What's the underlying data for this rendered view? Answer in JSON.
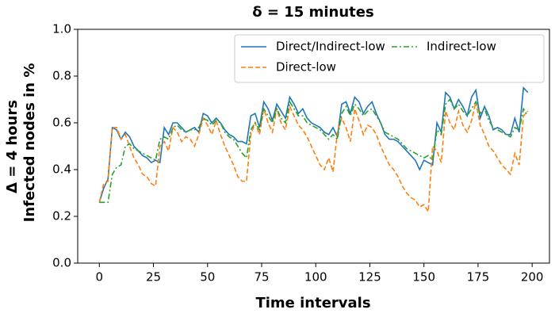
{
  "chart_data": {
    "type": "line",
    "title": "δ = 15 minutes",
    "xlabel": "Time intervals",
    "ylabel": [
      "Δ = 4 hours",
      "Infected nodes in %"
    ],
    "x": [
      0,
      2,
      4,
      6,
      8,
      10,
      12,
      14,
      16,
      18,
      20,
      22,
      24,
      26,
      28,
      30,
      32,
      34,
      36,
      38,
      40,
      42,
      44,
      46,
      48,
      50,
      52,
      54,
      56,
      58,
      60,
      62,
      64,
      66,
      68,
      70,
      72,
      74,
      76,
      78,
      80,
      82,
      84,
      86,
      88,
      90,
      92,
      94,
      96,
      98,
      100,
      102,
      104,
      106,
      108,
      110,
      112,
      114,
      116,
      118,
      120,
      122,
      124,
      126,
      128,
      130,
      132,
      134,
      136,
      138,
      140,
      142,
      144,
      146,
      148,
      150,
      152,
      154,
      156,
      158,
      160,
      162,
      164,
      166,
      168,
      170,
      172,
      174,
      176,
      178,
      180,
      182,
      184,
      186,
      188,
      190,
      192,
      194,
      196,
      198
    ],
    "series": [
      {
        "name": "Direct/Indirect-low",
        "color": "#1f77b4",
        "dash": "solid",
        "values": [
          0.26,
          0.32,
          0.36,
          0.58,
          0.57,
          0.53,
          0.56,
          0.54,
          0.5,
          0.48,
          0.46,
          0.45,
          0.43,
          0.44,
          0.43,
          0.58,
          0.55,
          0.6,
          0.6,
          0.58,
          0.56,
          0.57,
          0.58,
          0.56,
          0.64,
          0.63,
          0.6,
          0.62,
          0.6,
          0.57,
          0.55,
          0.54,
          0.52,
          0.52,
          0.51,
          0.63,
          0.64,
          0.58,
          0.69,
          0.66,
          0.61,
          0.68,
          0.65,
          0.62,
          0.71,
          0.68,
          0.64,
          0.66,
          0.62,
          0.6,
          0.59,
          0.58,
          0.56,
          0.55,
          0.58,
          0.54,
          0.68,
          0.69,
          0.64,
          0.71,
          0.69,
          0.64,
          0.67,
          0.69,
          0.64,
          0.6,
          0.55,
          0.53,
          0.53,
          0.52,
          0.5,
          0.48,
          0.46,
          0.44,
          0.4,
          0.44,
          0.43,
          0.42,
          0.6,
          0.56,
          0.73,
          0.71,
          0.66,
          0.7,
          0.67,
          0.63,
          0.71,
          0.74,
          0.62,
          0.67,
          0.63,
          0.57,
          0.58,
          0.57,
          0.55,
          0.55,
          0.62,
          0.56,
          0.75,
          0.73
        ]
      },
      {
        "name": "Direct-low",
        "color": "#ff7f0e",
        "dash": "dashed",
        "values": [
          0.26,
          0.34,
          0.35,
          0.58,
          0.58,
          0.53,
          0.55,
          0.5,
          0.45,
          0.42,
          0.38,
          0.37,
          0.34,
          0.33,
          0.5,
          0.52,
          0.48,
          0.58,
          0.56,
          0.52,
          0.54,
          0.53,
          0.5,
          0.55,
          0.62,
          0.59,
          0.55,
          0.61,
          0.55,
          0.5,
          0.46,
          0.42,
          0.37,
          0.35,
          0.35,
          0.55,
          0.6,
          0.55,
          0.66,
          0.6,
          0.56,
          0.66,
          0.6,
          0.57,
          0.67,
          0.63,
          0.59,
          0.57,
          0.54,
          0.5,
          0.46,
          0.42,
          0.4,
          0.45,
          0.39,
          0.56,
          0.62,
          0.58,
          0.52,
          0.66,
          0.61,
          0.55,
          0.59,
          0.58,
          0.55,
          0.5,
          0.46,
          0.42,
          0.4,
          0.37,
          0.33,
          0.3,
          0.28,
          0.27,
          0.24,
          0.25,
          0.22,
          0.5,
          0.48,
          0.43,
          0.65,
          0.6,
          0.57,
          0.65,
          0.59,
          0.56,
          0.61,
          0.69,
          0.59,
          0.55,
          0.5,
          0.48,
          0.45,
          0.42,
          0.4,
          0.38,
          0.47,
          0.42,
          0.63,
          0.65
        ]
      },
      {
        "name": "Indirect-low",
        "color": "#2ca02c",
        "dash": "dashdot",
        "values": [
          0.26,
          0.26,
          0.26,
          0.38,
          0.41,
          0.42,
          0.5,
          0.51,
          0.49,
          0.48,
          0.47,
          0.46,
          0.45,
          0.44,
          0.53,
          0.54,
          0.53,
          0.58,
          0.59,
          0.57,
          0.56,
          0.57,
          0.57,
          0.58,
          0.62,
          0.61,
          0.59,
          0.61,
          0.6,
          0.56,
          0.54,
          0.53,
          0.5,
          0.47,
          0.45,
          0.57,
          0.6,
          0.57,
          0.66,
          0.63,
          0.6,
          0.66,
          0.62,
          0.6,
          0.69,
          0.66,
          0.63,
          0.63,
          0.6,
          0.59,
          0.58,
          0.57,
          0.55,
          0.53,
          0.55,
          0.53,
          0.64,
          0.67,
          0.63,
          0.68,
          0.66,
          0.63,
          0.65,
          0.66,
          0.63,
          0.6,
          0.56,
          0.55,
          0.54,
          0.53,
          0.51,
          0.49,
          0.48,
          0.47,
          0.46,
          0.45,
          0.46,
          0.44,
          0.57,
          0.55,
          0.68,
          0.7,
          0.66,
          0.68,
          0.65,
          0.63,
          0.66,
          0.69,
          0.64,
          0.66,
          0.61,
          0.58,
          0.57,
          0.56,
          0.55,
          0.54,
          0.58,
          0.57,
          0.66,
          0.63
        ]
      }
    ],
    "xlim": [
      -10,
      208
    ],
    "ylim": [
      0,
      1
    ],
    "xticks": [
      0,
      25,
      50,
      75,
      100,
      125,
      150,
      175,
      200
    ],
    "yticks": [
      {
        "value": 0,
        "label": "0.0"
      },
      0.2,
      0.4,
      0.6,
      0.8,
      {
        "value": 1,
        "label": "1.0"
      }
    ],
    "legend": "upper right",
    "legend_columns": 2
  }
}
